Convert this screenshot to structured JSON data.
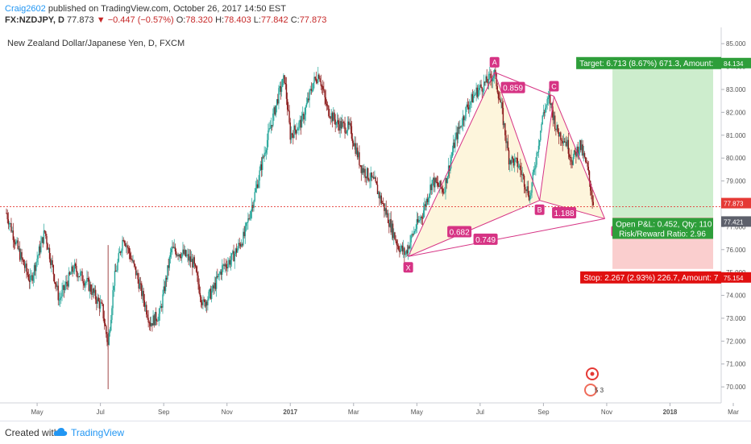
{
  "header": {
    "author": "Craig2602",
    "published_text": " published on TradingView.com, October 26, 2017 14:50 EST"
  },
  "quote": {
    "symbol": "FX:NZDJPY, D",
    "last": "77.873",
    "change_arrow": "▼",
    "change": "−0.447 (−0.57%)",
    "o_label": "O:",
    "o": "78.320",
    "h_label": "H:",
    "h": "78.403",
    "l_label": "L:",
    "l": "77.842",
    "c_label": "C:",
    "c": "77.873"
  },
  "footer": {
    "created_with": "Created with",
    "brand": "TradingView"
  },
  "colors": {
    "up": "#26a69a",
    "down": "#8b1a1a",
    "pattern": "#d63384",
    "target_zone": "#c8ebc8",
    "stop_zone": "#f9c9c9",
    "target_box": "#2e9e3a",
    "stop_box": "#e01010",
    "price_line": "#e53935"
  },
  "chart_data": {
    "type": "candlestick",
    "title": "New Zealand Dollar/Japanese Yen, D, FXCM",
    "ylim": [
      69.3,
      85.5
    ],
    "y_ticks": [
      "70.000",
      "71.000",
      "72.000",
      "73.000",
      "74.000",
      "75.000",
      "76.000",
      "77.000",
      "78.000",
      "79.000",
      "80.000",
      "81.000",
      "82.000",
      "83.000",
      "84.000",
      "85.000"
    ],
    "y_tick_values": [
      70,
      71,
      72,
      73,
      74,
      75,
      76,
      77,
      78,
      79,
      80,
      81,
      82,
      83,
      84,
      85
    ],
    "x_ticks": [
      "May",
      "Jul",
      "Sep",
      "Nov",
      "2017",
      "Mar",
      "May",
      "Jul",
      "Sep",
      "Nov",
      "2018",
      "Mar"
    ],
    "x_tick_strong": [
      false,
      false,
      false,
      false,
      true,
      false,
      false,
      false,
      false,
      false,
      true,
      false
    ],
    "x_tick_index": [
      32,
      98,
      164,
      230,
      296,
      362,
      428,
      494,
      560,
      626,
      692,
      758
    ],
    "last_close": 77.873,
    "price_labels": [
      {
        "text": "84.134",
        "value": 84.134,
        "kind": "target"
      },
      {
        "text": "77.873",
        "value": 77.873,
        "kind": "last"
      },
      {
        "text": "77.421",
        "value": 77.421,
        "kind": "entry"
      },
      {
        "text": "75.154",
        "value": 75.154,
        "kind": "stop"
      }
    ],
    "price_anchors": [
      [
        0,
        77.6
      ],
      [
        12,
        76.0
      ],
      [
        25,
        74.6
      ],
      [
        40,
        76.8
      ],
      [
        55,
        73.8
      ],
      [
        70,
        75.2
      ],
      [
        85,
        74.5
      ],
      [
        100,
        73.4
      ],
      [
        106,
        71.8
      ],
      [
        112,
        74.6
      ],
      [
        122,
        76.6
      ],
      [
        135,
        75.0
      ],
      [
        150,
        72.8
      ],
      [
        160,
        73.2
      ],
      [
        172,
        76.0
      ],
      [
        185,
        75.8
      ],
      [
        195,
        75.4
      ],
      [
        205,
        73.6
      ],
      [
        215,
        74.2
      ],
      [
        225,
        75.2
      ],
      [
        235,
        75.6
      ],
      [
        248,
        76.6
      ],
      [
        260,
        78.6
      ],
      [
        272,
        80.8
      ],
      [
        284,
        82.8
      ],
      [
        290,
        83.5
      ],
      [
        296,
        81.0
      ],
      [
        308,
        81.6
      ],
      [
        320,
        83.3
      ],
      [
        326,
        83.7
      ],
      [
        334,
        82.2
      ],
      [
        345,
        81.5
      ],
      [
        358,
        81.3
      ],
      [
        370,
        79.6
      ],
      [
        384,
        78.9
      ],
      [
        396,
        77.6
      ],
      [
        408,
        76.2
      ],
      [
        416,
        75.8
      ],
      [
        424,
        76.7
      ],
      [
        434,
        77.6
      ],
      [
        444,
        79.0
      ],
      [
        456,
        78.6
      ],
      [
        468,
        80.8
      ],
      [
        480,
        82.2
      ],
      [
        490,
        82.9
      ],
      [
        500,
        83.3
      ],
      [
        509,
        83.7
      ],
      [
        516,
        82.2
      ],
      [
        524,
        80.0
      ],
      [
        534,
        79.7
      ],
      [
        546,
        78.3
      ],
      [
        553,
        80.2
      ],
      [
        560,
        82.0
      ],
      [
        566,
        82.6
      ],
      [
        574,
        81.2
      ],
      [
        584,
        80.7
      ],
      [
        590,
        79.9
      ],
      [
        598,
        80.6
      ],
      [
        606,
        79.5
      ],
      [
        612,
        78.0
      ]
    ],
    "pattern": {
      "points": [
        {
          "label": "X",
          "x_index": 419,
          "value": 75.7
        },
        {
          "label": "A",
          "x_index": 509,
          "value": 83.75
        },
        {
          "label": "B",
          "x_index": 556,
          "value": 78.15
        },
        {
          "label": "C",
          "x_index": 571,
          "value": 82.7
        },
        {
          "label": "D",
          "x_index": 624,
          "value": 77.35
        }
      ],
      "ratios": [
        {
          "text": "0.859",
          "between": "A-C"
        },
        {
          "text": "0.682",
          "between": "X-B"
        },
        {
          "text": "0.749",
          "between": "X-D"
        },
        {
          "text": "1.188",
          "between": "B-D"
        }
      ]
    },
    "position": {
      "target_price": 84.134,
      "entry_price": 77.421,
      "stop_price": 75.154,
      "target_label": "Target: 6.713 (8.67%) 671.3, Amount:",
      "stop_label": "Stop: 2.267 (2.93%) 226.7, Amount: 7",
      "pnl_label": "Open P&L: 0.452, Qty: 110",
      "rr_label": "Risk/Reward Ratio: 2.96"
    },
    "event_badge": "5 3"
  }
}
